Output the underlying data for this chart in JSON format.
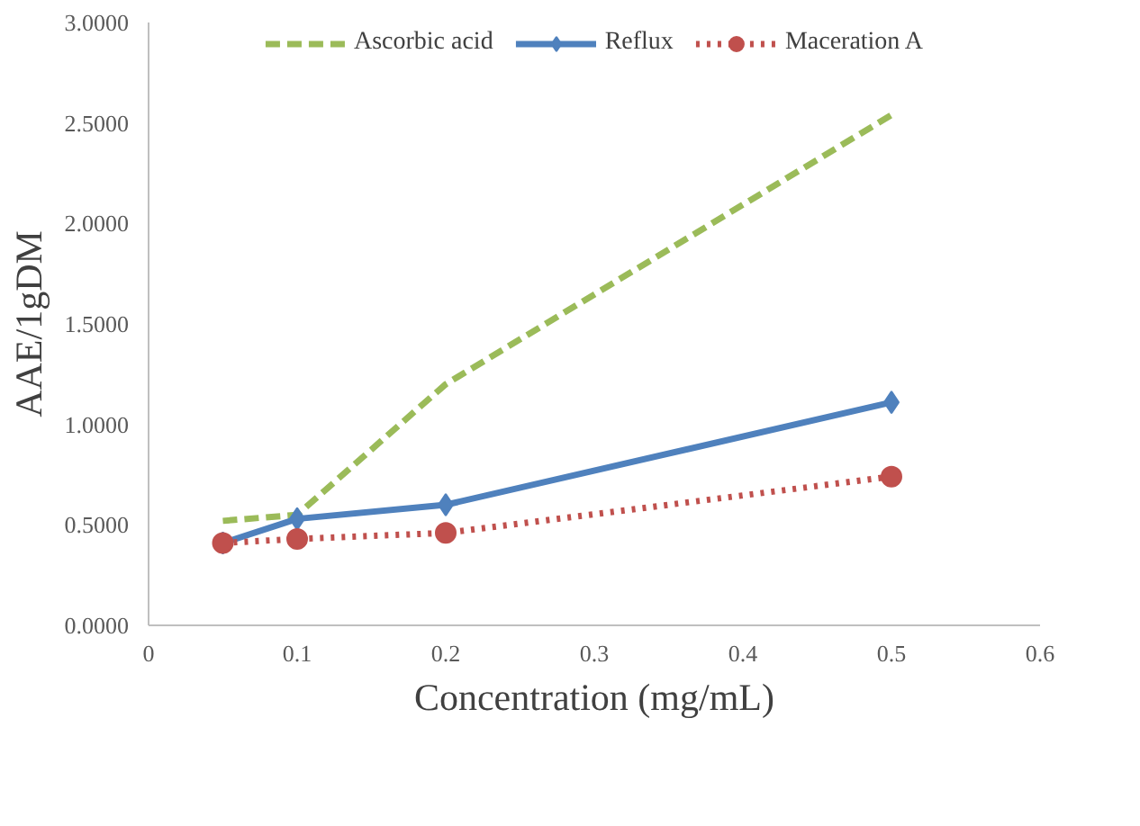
{
  "chart_data": {
    "type": "line",
    "xlabel": "Concentration (mg/mL)",
    "ylabel": "AAE/1gDM",
    "x": [
      0.05,
      0.1,
      0.2,
      0.5
    ],
    "series": [
      {
        "name": "Ascorbic acid",
        "color": "#9bbb59",
        "values": [
          0.52,
          0.55,
          1.2,
          2.54
        ],
        "line_style": "dashed",
        "marker": "none"
      },
      {
        "name": "Reflux",
        "color": "#4f81bd",
        "values": [
          0.41,
          0.53,
          0.6,
          1.11
        ],
        "line_style": "solid",
        "marker": "diamond"
      },
      {
        "name": "Maceration A",
        "color": "#c0504d",
        "values": [
          0.41,
          0.43,
          0.46,
          0.74
        ],
        "line_style": "dotted",
        "marker": "circle"
      }
    ],
    "xlim": [
      0,
      0.6
    ],
    "xticks": [
      0,
      0.1,
      0.2,
      0.3,
      0.4,
      0.5,
      0.6
    ],
    "ylim": [
      0,
      3
    ],
    "yticks": [
      {
        "value": 0,
        "label": "0.0000"
      },
      {
        "value": 0.5,
        "label": "0.5000"
      },
      {
        "value": 1,
        "label": "1.0000"
      },
      {
        "value": 1.5,
        "label": "1.5000"
      },
      {
        "value": 2,
        "label": "2.0000"
      },
      {
        "value": 2.5,
        "label": "2.5000"
      },
      {
        "value": 3,
        "label": "3.0000"
      }
    ],
    "grid": false,
    "legend": "top"
  }
}
